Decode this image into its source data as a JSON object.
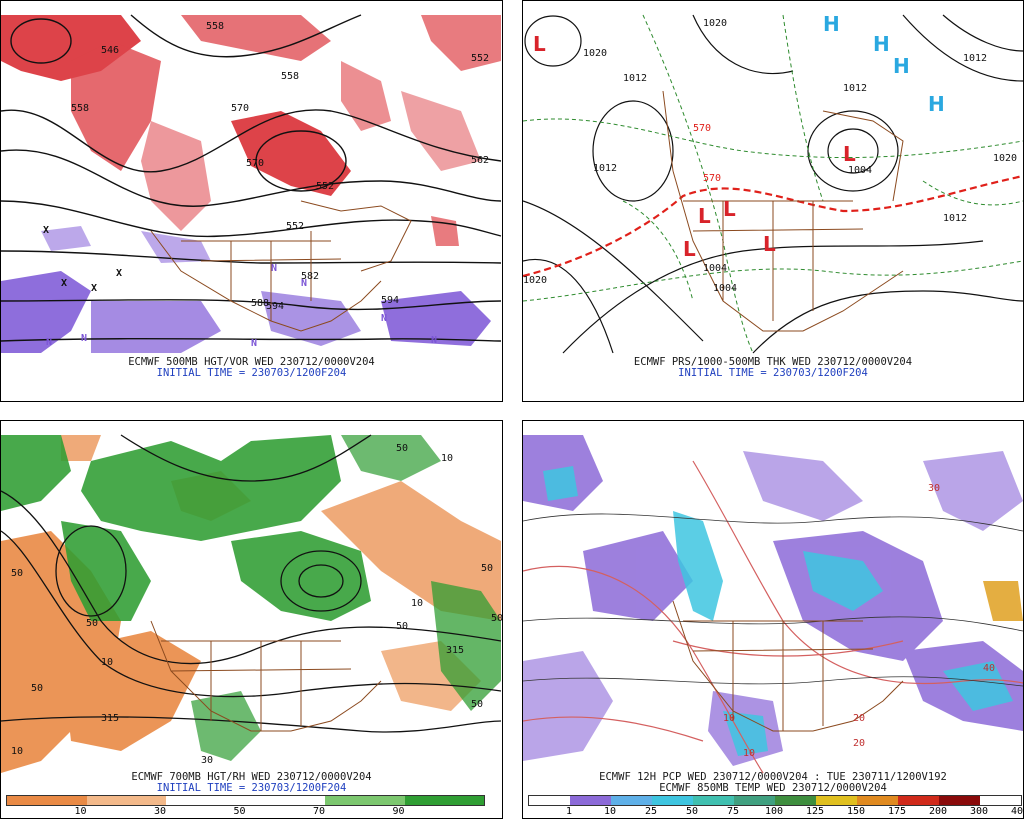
{
  "panels": [
    {
      "id": "p1",
      "caption_line1": "ECMWF 500MB HGT/VOR WED 230712/0000V204",
      "caption_line2": "INITIAL TIME = 230703/1200F204",
      "contour_labels": [
        "558",
        "546",
        "552",
        "558",
        "570",
        "558",
        "570",
        "552",
        "552",
        "562",
        "582",
        "588",
        "594",
        "594"
      ],
      "symbols": [
        "X",
        "N"
      ]
    },
    {
      "id": "p2",
      "caption_line1": "ECMWF PRS/1000-500MB THK WED 230712/0000V204",
      "caption_line2": "INITIAL TIME = 230703/1200F204",
      "contour_labels": [
        "1012",
        "1020",
        "1012",
        "1012",
        "1020",
        "1012",
        "1004",
        "1020",
        "1012",
        "1004",
        "1012",
        "1004",
        "1020",
        "570",
        "570"
      ],
      "symbols": [
        "L",
        "H"
      ]
    },
    {
      "id": "p3",
      "caption_line1": "ECMWF 700MB HGT/RH WED 230712/0000V204",
      "caption_line2": "INITIAL TIME = 230703/1200F204",
      "contour_labels": [
        "50",
        "10",
        "50",
        "315",
        "50",
        "10",
        "50",
        "315",
        "50",
        "10",
        "50",
        "30",
        "10",
        "50",
        "50"
      ],
      "colorbar": {
        "ticks": [
          "10",
          "30",
          "50",
          "70",
          "90"
        ]
      }
    },
    {
      "id": "p4",
      "caption_line1": "ECMWF 12H PCP WED 230712/0000V204 : TUE 230711/1200V192",
      "caption_line2": "ECMWF 850MB TEMP WED 230712/0000V204",
      "contour_labels": [
        "10",
        "20",
        "30",
        "40",
        "10",
        "20"
      ],
      "colorbar": {
        "ticks": [
          "1",
          "10",
          "25",
          "50",
          "75",
          "100",
          "125",
          "150",
          "175",
          "200",
          "300",
          "400"
        ]
      }
    }
  ],
  "colors": {
    "vorticity_pos": "#d8232a",
    "vorticity_neg": "#7b55d6",
    "rh_moist": "#2f9e33",
    "rh_dry": "#e98a45",
    "precip_light": "#8c6ad8",
    "precip_mod": "#3ec5e0",
    "front": "#e0201a",
    "border": "#8b4a1f"
  }
}
